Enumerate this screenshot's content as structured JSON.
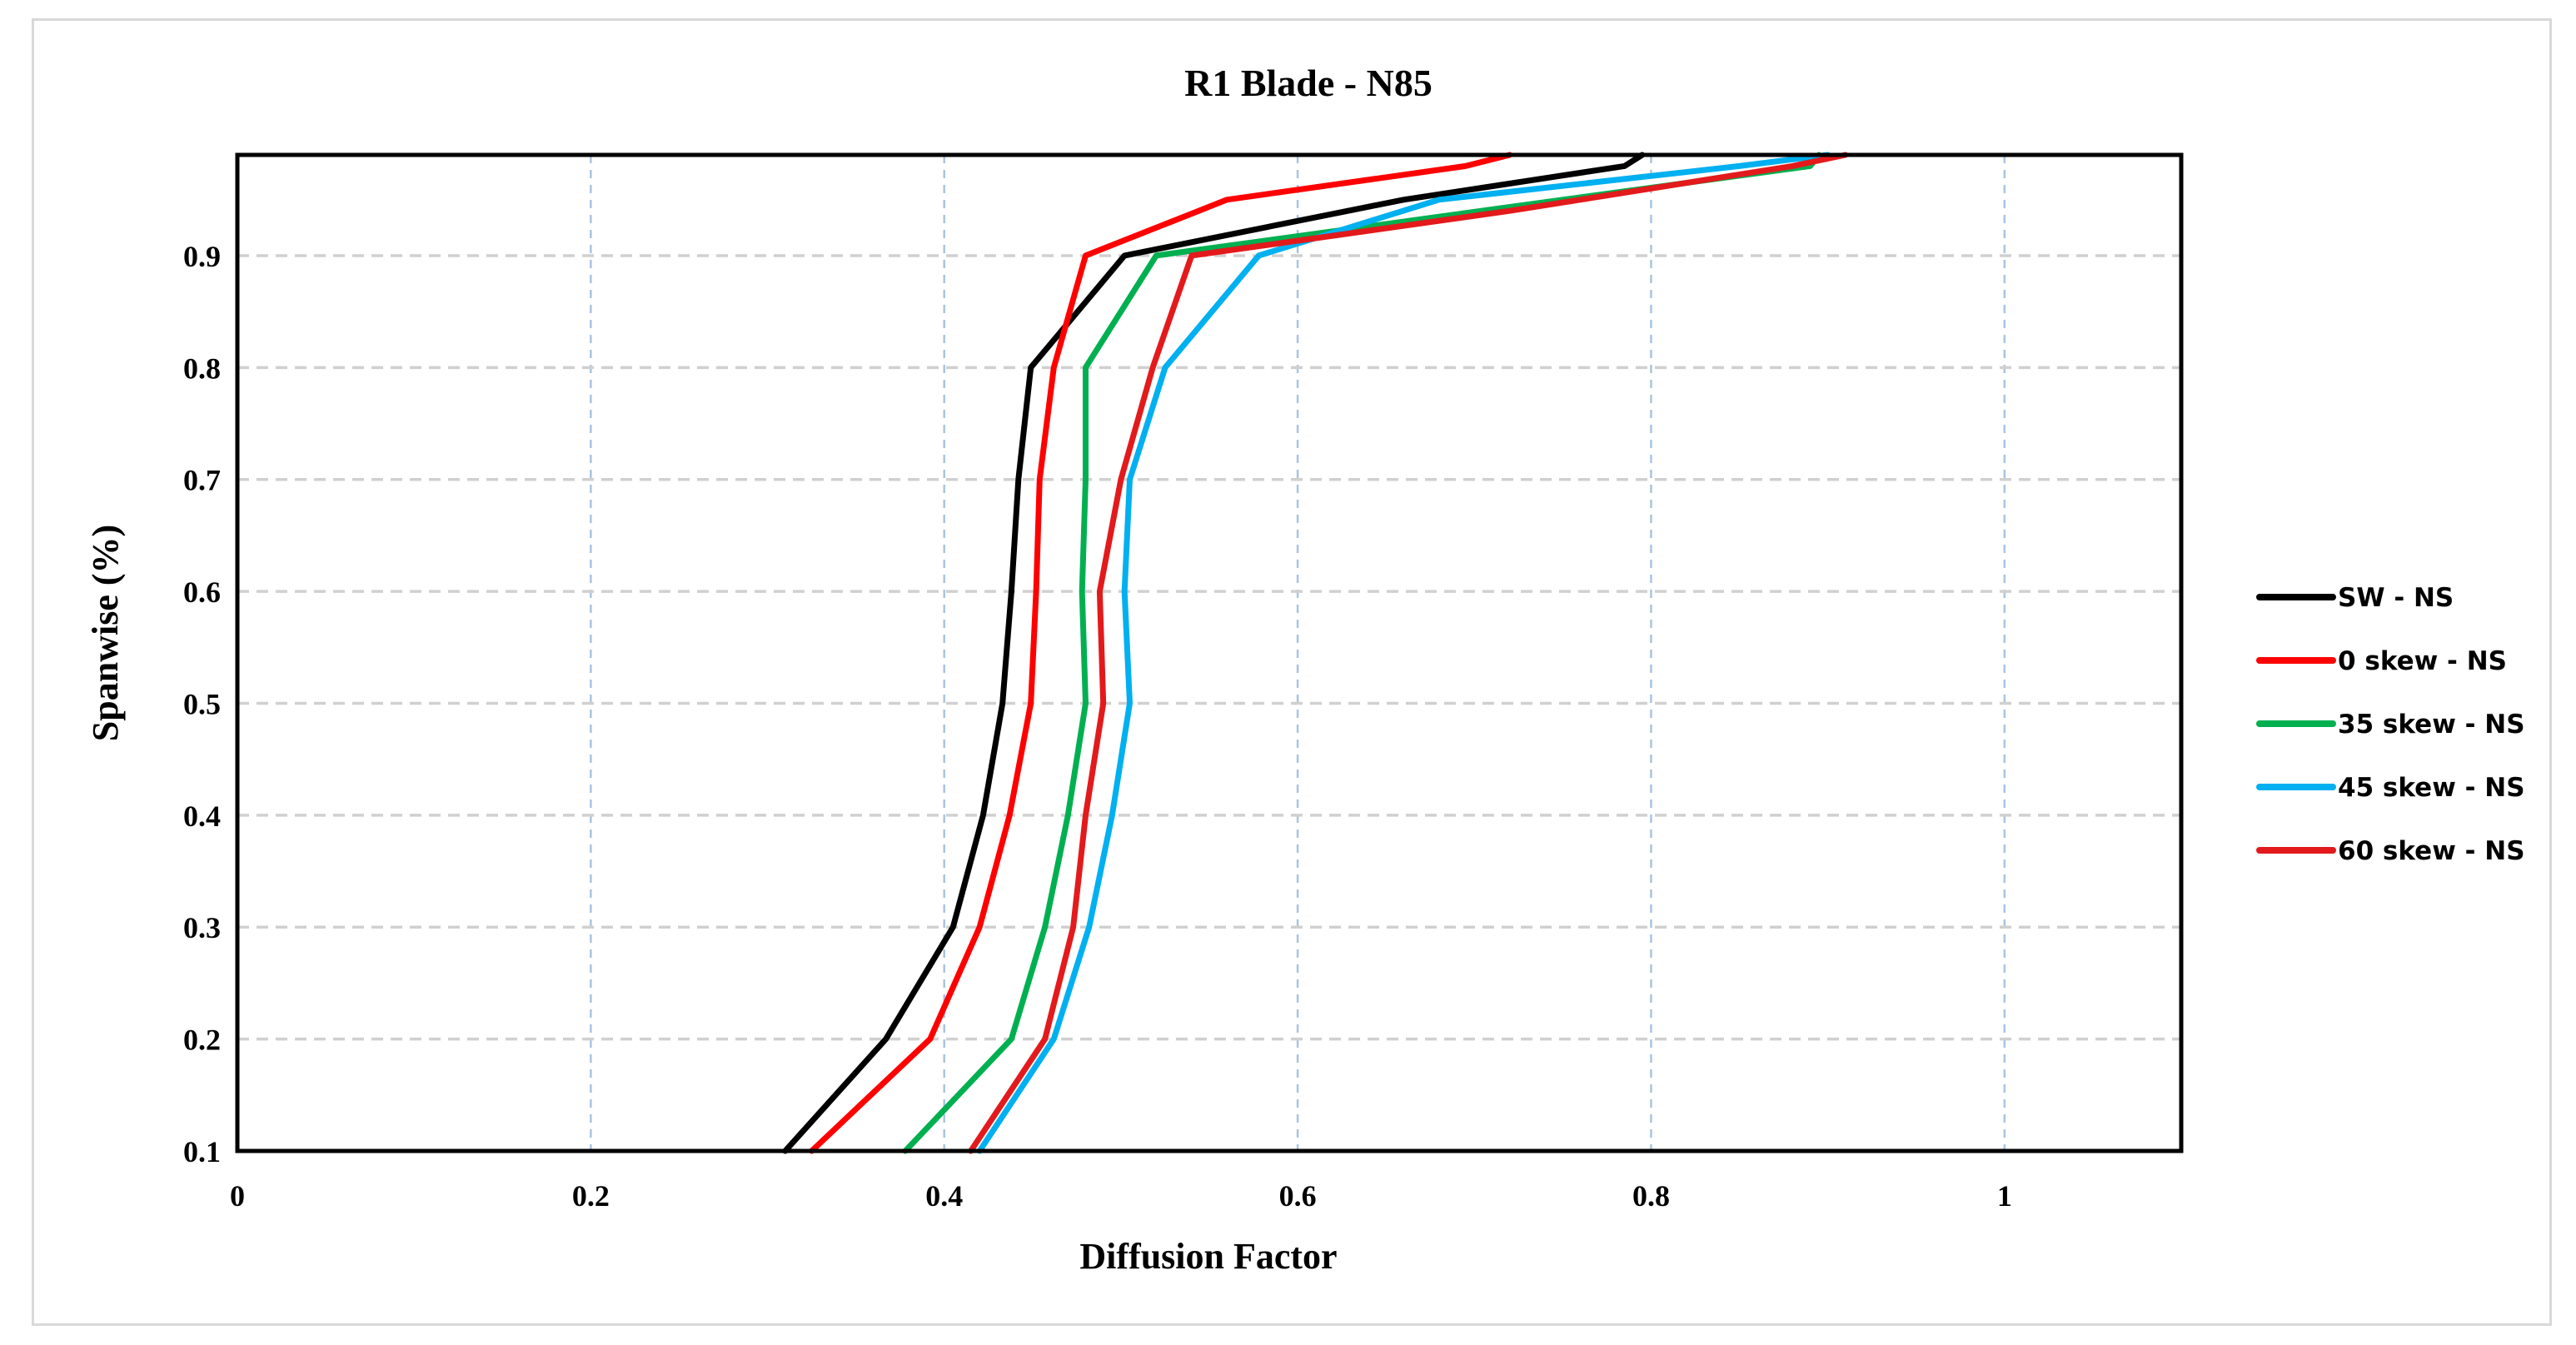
{
  "chart_data": {
    "type": "line",
    "title": "R1 Blade - N85",
    "xlabel": "Diffusion Factor",
    "ylabel": "Spanwise (%)",
    "xlim": [
      0,
      1.1
    ],
    "ylim": [
      0.1,
      0.99
    ],
    "xticks": [
      0,
      0.2,
      0.4,
      0.6,
      0.8,
      1
    ],
    "xtick_labels": [
      "0",
      "0.2",
      "0.4",
      "0.6",
      "0.8",
      "1"
    ],
    "yticks": [
      0.1,
      0.2,
      0.3,
      0.4,
      0.5,
      0.6,
      0.7,
      0.8,
      0.9
    ],
    "ytick_labels": [
      "0.1",
      "0.2",
      "0.3",
      "0.4",
      "0.5",
      "0.6",
      "0.7",
      "0.8",
      "0.9"
    ],
    "grid": true,
    "legend_position": "right",
    "series": [
      {
        "name": "SW - NS",
        "color": "#000000",
        "points": [
          [
            0.31,
            0.1
          ],
          [
            0.367,
            0.2
          ],
          [
            0.405,
            0.3
          ],
          [
            0.422,
            0.4
          ],
          [
            0.433,
            0.5
          ],
          [
            0.438,
            0.6
          ],
          [
            0.442,
            0.7
          ],
          [
            0.449,
            0.8
          ],
          [
            0.502,
            0.9
          ],
          [
            0.66,
            0.95
          ],
          [
            0.785,
            0.98
          ],
          [
            0.795,
            0.99
          ]
        ]
      },
      {
        "name": "0 skew - NS",
        "color": "#ff0000",
        "points": [
          [
            0.325,
            0.1
          ],
          [
            0.392,
            0.2
          ],
          [
            0.42,
            0.3
          ],
          [
            0.437,
            0.4
          ],
          [
            0.449,
            0.5
          ],
          [
            0.452,
            0.6
          ],
          [
            0.454,
            0.7
          ],
          [
            0.462,
            0.8
          ],
          [
            0.48,
            0.9
          ],
          [
            0.56,
            0.95
          ],
          [
            0.695,
            0.98
          ],
          [
            0.72,
            0.99
          ]
        ]
      },
      {
        "name": "35 skew - NS",
        "color": "#00b050",
        "points": [
          [
            0.378,
            0.1
          ],
          [
            0.438,
            0.2
          ],
          [
            0.457,
            0.3
          ],
          [
            0.47,
            0.4
          ],
          [
            0.48,
            0.5
          ],
          [
            0.478,
            0.6
          ],
          [
            0.48,
            0.7
          ],
          [
            0.48,
            0.8
          ],
          [
            0.52,
            0.9
          ],
          [
            0.75,
            0.95
          ],
          [
            0.89,
            0.98
          ],
          [
            0.895,
            0.99
          ]
        ]
      },
      {
        "name": "45 skew - NS",
        "color": "#00b0f0",
        "points": [
          [
            0.42,
            0.1
          ],
          [
            0.462,
            0.2
          ],
          [
            0.482,
            0.3
          ],
          [
            0.495,
            0.4
          ],
          [
            0.505,
            0.5
          ],
          [
            0.502,
            0.6
          ],
          [
            0.505,
            0.7
          ],
          [
            0.525,
            0.8
          ],
          [
            0.578,
            0.9
          ],
          [
            0.68,
            0.95
          ],
          [
            0.85,
            0.98
          ],
          [
            0.9,
            0.99
          ]
        ]
      },
      {
        "name": "60 skew - NS",
        "color": "#e31a1c",
        "points": [
          [
            0.415,
            0.1
          ],
          [
            0.457,
            0.2
          ],
          [
            0.473,
            0.3
          ],
          [
            0.48,
            0.4
          ],
          [
            0.49,
            0.5
          ],
          [
            0.488,
            0.6
          ],
          [
            0.5,
            0.7
          ],
          [
            0.518,
            0.8
          ],
          [
            0.54,
            0.9
          ],
          [
            0.72,
            0.94
          ],
          [
            0.88,
            0.98
          ],
          [
            0.91,
            0.99
          ]
        ]
      }
    ]
  }
}
